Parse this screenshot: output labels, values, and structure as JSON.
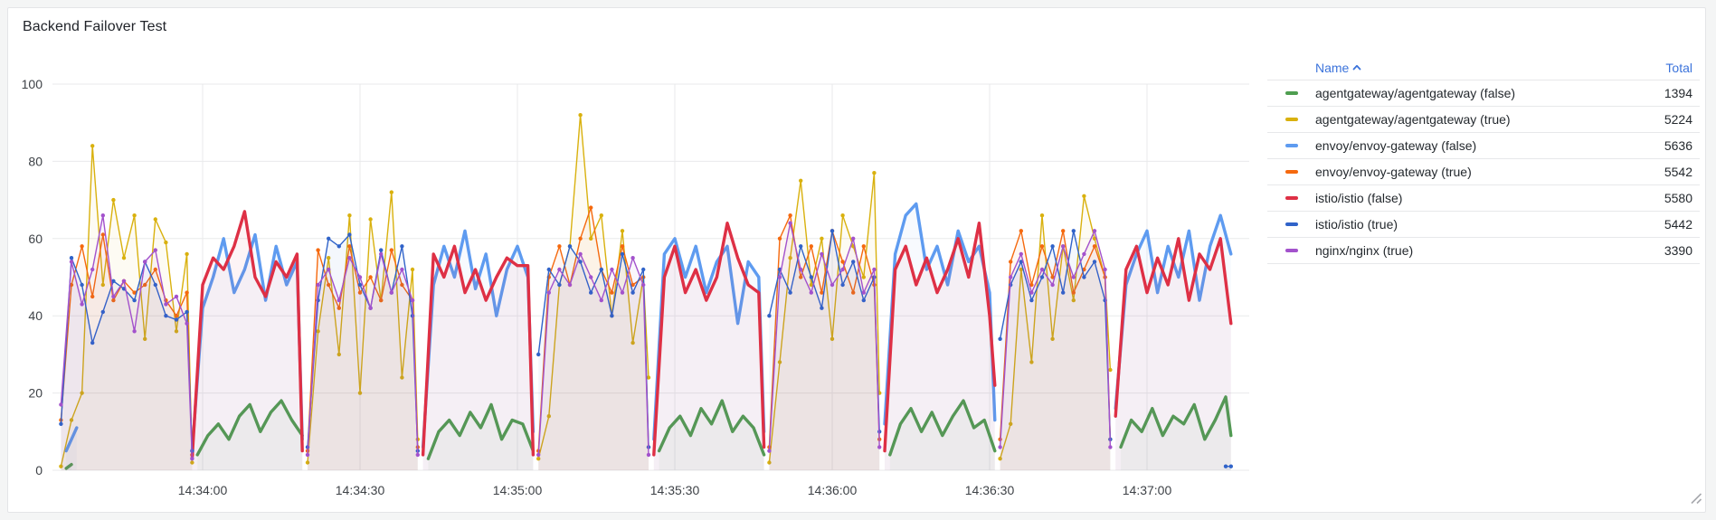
{
  "panel": {
    "title": "Backend Failover Test"
  },
  "legend": {
    "name_header": "Name",
    "total_header": "Total",
    "rows": [
      {
        "label": "agentgateway/agentgateway (false)",
        "total": "1394",
        "color": "#4e9e50"
      },
      {
        "label": "agentgateway/agentgateway (true)",
        "total": "5224",
        "color": "#d9b10e"
      },
      {
        "label": "envoy/envoy-gateway (false)",
        "total": "5636",
        "color": "#5e9bf0"
      },
      {
        "label": "envoy/envoy-gateway (true)",
        "total": "5542",
        "color": "#f5690e"
      },
      {
        "label": "istio/istio (false)",
        "total": "5580",
        "color": "#de3045"
      },
      {
        "label": "istio/istio (true)",
        "total": "5442",
        "color": "#3063c9"
      },
      {
        "label": "nginx/nginx (true)",
        "total": "3390",
        "color": "#a352cc"
      }
    ]
  },
  "chart_data": {
    "type": "line",
    "title": "Backend Failover Test",
    "xlabel": "",
    "ylabel": "",
    "ylim": [
      0,
      100
    ],
    "y_ticks": [
      0,
      20,
      40,
      60,
      80,
      100
    ],
    "x_unit": "seconds relative to 14:34:00",
    "x_range": [
      -29,
      198
    ],
    "x_ticks": [
      {
        "t": 0,
        "label": "14:34:00"
      },
      {
        "t": 30,
        "label": "14:34:30"
      },
      {
        "t": 60,
        "label": "14:35:00"
      },
      {
        "t": 90,
        "label": "14:35:30"
      },
      {
        "t": 120,
        "label": "14:36:00"
      },
      {
        "t": 150,
        "label": "14:36:30"
      },
      {
        "t": 180,
        "label": "14:37:00"
      }
    ],
    "grid": true,
    "legend_position": "right-table",
    "series": [
      {
        "name": "agentgateway/agentgateway (false)",
        "color": "#4e9e50",
        "width": 3.4,
        "markers": false,
        "segments": [
          [
            -26,
            0.5,
            -25,
            1.5
          ],
          [
            -1,
            4,
            1,
            9,
            3,
            12,
            5,
            8,
            7,
            14,
            9,
            17,
            11,
            10,
            13,
            15,
            15,
            18,
            17,
            13,
            19,
            9
          ],
          [
            43,
            3,
            45,
            10,
            47,
            13,
            49,
            9,
            51,
            15,
            53,
            11,
            55,
            17,
            57,
            8,
            59,
            13,
            61,
            12,
            63,
            5
          ],
          [
            87,
            5,
            89,
            11,
            91,
            14,
            93,
            9,
            95,
            16,
            97,
            12,
            99,
            18,
            101,
            10,
            103,
            14,
            105,
            11,
            107,
            4
          ],
          [
            131,
            4,
            133,
            12,
            135,
            16,
            137,
            10,
            139,
            15,
            141,
            9,
            143,
            14,
            145,
            18,
            147,
            11,
            149,
            13,
            151,
            5
          ],
          [
            175,
            6,
            177,
            13,
            179,
            10,
            181,
            16,
            183,
            9,
            185,
            14,
            187,
            12,
            189,
            17,
            191,
            8,
            193,
            13,
            195,
            19,
            196,
            9
          ]
        ]
      },
      {
        "name": "agentgateway/agentgateway (true)",
        "color": "#d9b10e",
        "width": 1.4,
        "markers": true,
        "segments": [
          [
            -27,
            1,
            -25,
            13,
            -23,
            20,
            -21,
            84,
            -19,
            48,
            -17,
            70,
            -15,
            55,
            -13,
            66,
            -11,
            34,
            -9,
            65,
            -7,
            59,
            -5,
            36,
            -3,
            56,
            -2,
            2
          ],
          [
            20,
            2,
            22,
            36,
            24,
            55,
            26,
            30,
            28,
            66,
            30,
            20,
            32,
            65,
            34,
            44,
            36,
            72,
            38,
            24,
            40,
            52,
            41,
            8
          ],
          [
            64,
            3,
            66,
            14,
            68,
            48,
            70,
            58,
            72,
            92,
            74,
            60,
            76,
            66,
            78,
            40,
            80,
            62,
            82,
            33,
            84,
            50,
            85,
            24
          ],
          [
            108,
            2,
            110,
            28,
            112,
            55,
            114,
            75,
            116,
            48,
            118,
            60,
            120,
            34,
            122,
            66,
            124,
            58,
            126,
            50,
            128,
            77,
            129,
            20
          ],
          [
            152,
            3,
            154,
            12,
            156,
            52,
            158,
            28,
            160,
            66,
            162,
            34,
            164,
            58,
            166,
            44,
            168,
            71,
            170,
            60,
            172,
            50,
            173,
            26
          ]
        ]
      },
      {
        "name": "envoy/envoy-gateway (false)",
        "color": "#5e9bf0",
        "width": 3.4,
        "markers": false,
        "segments": [
          [
            -26,
            5,
            -25,
            8,
            -24,
            11
          ],
          [
            -2,
            5,
            0,
            42,
            2,
            50,
            4,
            60,
            6,
            46,
            8,
            52,
            10,
            61,
            12,
            44,
            14,
            58,
            16,
            48,
            18,
            54,
            19,
            8
          ],
          [
            42,
            6,
            44,
            48,
            46,
            58,
            48,
            50,
            50,
            62,
            52,
            47,
            54,
            56,
            56,
            40,
            58,
            52,
            60,
            58,
            62,
            50,
            63,
            10
          ],
          [
            86,
            8,
            88,
            56,
            90,
            60,
            92,
            50,
            94,
            58,
            96,
            46,
            98,
            54,
            100,
            58,
            102,
            38,
            104,
            54,
            106,
            50,
            107,
            10
          ],
          [
            130,
            12,
            132,
            56,
            134,
            66,
            136,
            69,
            138,
            52,
            140,
            58,
            142,
            48,
            144,
            62,
            146,
            54,
            148,
            58,
            150,
            46,
            151,
            13
          ],
          [
            174,
            16,
            176,
            48,
            178,
            56,
            180,
            62,
            182,
            46,
            184,
            58,
            186,
            50,
            188,
            62,
            190,
            44,
            192,
            58,
            194,
            66,
            196,
            56
          ]
        ]
      },
      {
        "name": "envoy/envoy-gateway (true)",
        "color": "#f5690e",
        "width": 1.4,
        "markers": true,
        "segments": [
          [
            -27,
            13,
            -25,
            48,
            -23,
            58,
            -21,
            45,
            -19,
            61,
            -17,
            44,
            -15,
            49,
            -13,
            46,
            -11,
            48,
            -9,
            52,
            -7,
            44,
            -5,
            40,
            -3,
            46,
            -2,
            4
          ],
          [
            20,
            5,
            22,
            57,
            24,
            48,
            26,
            42,
            28,
            58,
            30,
            46,
            32,
            50,
            34,
            44,
            36,
            57,
            38,
            48,
            40,
            44,
            41,
            6
          ],
          [
            64,
            5,
            66,
            50,
            68,
            58,
            70,
            48,
            72,
            60,
            74,
            68,
            76,
            52,
            78,
            46,
            80,
            58,
            82,
            48,
            84,
            50,
            85,
            6
          ],
          [
            108,
            6,
            110,
            60,
            112,
            66,
            114,
            50,
            116,
            58,
            118,
            46,
            120,
            62,
            122,
            54,
            124,
            46,
            126,
            58,
            128,
            48,
            129,
            8
          ],
          [
            152,
            8,
            154,
            54,
            156,
            62,
            158,
            48,
            160,
            58,
            162,
            50,
            164,
            62,
            166,
            46,
            168,
            52,
            170,
            58,
            172,
            50,
            173,
            8
          ]
        ]
      },
      {
        "name": "istio/istio (false)",
        "color": "#de3045",
        "width": 3.4,
        "markers": false,
        "segments": [
          [
            -2,
            3,
            0,
            48,
            2,
            55,
            4,
            52,
            6,
            58,
            8,
            67,
            10,
            50,
            12,
            45,
            14,
            54,
            16,
            50,
            18,
            56,
            19,
            5
          ],
          [
            42,
            4,
            44,
            56,
            46,
            50,
            48,
            58,
            50,
            46,
            52,
            52,
            54,
            44,
            56,
            50,
            58,
            55,
            60,
            53,
            62,
            53,
            63,
            4
          ],
          [
            86,
            4,
            88,
            50,
            90,
            58,
            92,
            46,
            94,
            52,
            96,
            44,
            98,
            50,
            100,
            64,
            102,
            55,
            104,
            48,
            106,
            46,
            107,
            6
          ],
          [
            130,
            5,
            132,
            52,
            134,
            58,
            136,
            48,
            138,
            55,
            140,
            46,
            142,
            52,
            144,
            60,
            146,
            50,
            148,
            64,
            150,
            40,
            151,
            22
          ],
          [
            174,
            14,
            176,
            52,
            178,
            58,
            180,
            46,
            182,
            55,
            184,
            48,
            186,
            60,
            188,
            44,
            190,
            56,
            192,
            52,
            194,
            60,
            196,
            38
          ]
        ]
      },
      {
        "name": "istio/istio (true)",
        "color": "#3063c9",
        "width": 1.4,
        "markers": true,
        "segments": [
          [
            -27,
            12,
            -25,
            55,
            -23,
            48,
            -21,
            33,
            -19,
            41,
            -17,
            49,
            -15,
            47,
            -13,
            44,
            -11,
            54,
            -9,
            48,
            -7,
            40,
            -5,
            39,
            -3,
            41,
            -2,
            5
          ],
          [
            20,
            6,
            22,
            44,
            24,
            60,
            26,
            58,
            28,
            61,
            30,
            48,
            32,
            42,
            34,
            57,
            36,
            46,
            38,
            58,
            40,
            40,
            41,
            5
          ],
          [
            64,
            30,
            66,
            52,
            68,
            48,
            70,
            58,
            72,
            54,
            74,
            46,
            76,
            52,
            78,
            40,
            80,
            56,
            82,
            46,
            84,
            52,
            85,
            6
          ],
          [
            108,
            40,
            110,
            52,
            112,
            46,
            114,
            58,
            116,
            50,
            118,
            42,
            120,
            62,
            122,
            48,
            124,
            54,
            126,
            44,
            128,
            50,
            129,
            10
          ],
          [
            152,
            34,
            154,
            48,
            156,
            54,
            158,
            44,
            160,
            50,
            162,
            58,
            164,
            46,
            166,
            62,
            168,
            50,
            170,
            54,
            172,
            44,
            173,
            8
          ],
          [
            195,
            1,
            196,
            1
          ]
        ]
      },
      {
        "name": "nginx/nginx (true)",
        "color": "#a352cc",
        "width": 1.4,
        "markers": true,
        "segments": [
          [
            -27,
            17,
            -25,
            54,
            -23,
            43,
            -21,
            52,
            -19,
            66,
            -17,
            45,
            -15,
            49,
            -13,
            36,
            -11,
            54,
            -9,
            57,
            -7,
            43,
            -5,
            45,
            -3,
            38,
            -2,
            3
          ],
          [
            20,
            4,
            22,
            48,
            24,
            52,
            26,
            44,
            28,
            55,
            30,
            50,
            32,
            42,
            34,
            56,
            36,
            46,
            38,
            52,
            40,
            44,
            41,
            4
          ],
          [
            64,
            4,
            66,
            46,
            68,
            52,
            70,
            48,
            72,
            56,
            74,
            50,
            76,
            44,
            78,
            52,
            80,
            46,
            82,
            55,
            84,
            48,
            85,
            4
          ],
          [
            108,
            5,
            110,
            50,
            112,
            64,
            114,
            52,
            116,
            46,
            118,
            56,
            120,
            48,
            122,
            52,
            124,
            60,
            126,
            46,
            128,
            52,
            129,
            6
          ],
          [
            152,
            6,
            154,
            50,
            156,
            56,
            158,
            46,
            160,
            52,
            162,
            48,
            164,
            58,
            166,
            50,
            168,
            56,
            170,
            62,
            172,
            52,
            173,
            6
          ]
        ]
      }
    ]
  }
}
